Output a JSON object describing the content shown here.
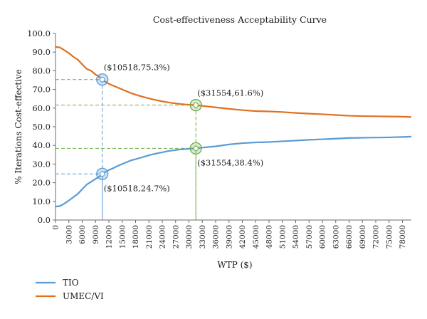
{
  "chart_data": {
    "type": "line",
    "title": "Cost-effectiveness Acceptability Curve",
    "xlabel": "WTP ($)",
    "ylabel": "% Iterations Cost-effective",
    "xlim": [
      0,
      80000
    ],
    "ylim": [
      0,
      100
    ],
    "y_ticks": [
      "0.0",
      "10.0",
      "20.0",
      "30.0",
      "40.0",
      "50.0",
      "60.0",
      "70.0",
      "80.0",
      "90.0",
      "100.0"
    ],
    "x_ticks": [
      "0",
      "3000",
      "6000",
      "9000",
      "12000",
      "15000",
      "18000",
      "21000",
      "24000",
      "27000",
      "30000",
      "33000",
      "36000",
      "39000",
      "42000",
      "45000",
      "48000",
      "51000",
      "54000",
      "57000",
      "60000",
      "63000",
      "66000",
      "69000",
      "72000",
      "75000",
      "78000"
    ],
    "grid": false,
    "legend_position": "bottom-left",
    "series": [
      {
        "name": "TIO",
        "color": "#5b9bd5",
        "x": [
          0,
          1000,
          2000,
          3000,
          4000,
          5000,
          6000,
          7000,
          8000,
          9000,
          10000,
          10518,
          11000,
          12000,
          13000,
          14000,
          15000,
          16000,
          17000,
          18000,
          19000,
          20000,
          21000,
          22000,
          23000,
          24000,
          25000,
          26000,
          27000,
          28000,
          29000,
          30000,
          31000,
          31554,
          33000,
          36000,
          39000,
          42000,
          45000,
          48000,
          51000,
          54000,
          57000,
          60000,
          63000,
          66000,
          69000,
          72000,
          75000,
          78000,
          80000
        ],
        "values": [
          7.2,
          7.5,
          8.8,
          10.5,
          12.2,
          14.0,
          16.5,
          19.0,
          20.5,
          22.0,
          23.5,
          24.7,
          25.5,
          26.8,
          27.8,
          29.0,
          30.0,
          31.0,
          32.0,
          32.6,
          33.3,
          34.0,
          34.7,
          35.3,
          35.8,
          36.3,
          36.8,
          37.2,
          37.5,
          37.8,
          38.0,
          38.2,
          38.3,
          38.4,
          38.8,
          39.5,
          40.5,
          41.2,
          41.6,
          41.8,
          42.2,
          42.6,
          43.0,
          43.3,
          43.6,
          44.0,
          44.1,
          44.2,
          44.3,
          44.5,
          44.7
        ]
      },
      {
        "name": "UMEC/VI",
        "color": "#e07020",
        "x": [
          0,
          1000,
          2000,
          3000,
          4000,
          5000,
          6000,
          7000,
          8000,
          9000,
          10000,
          10518,
          11000,
          12000,
          13000,
          14000,
          15000,
          16000,
          17000,
          18000,
          19000,
          20000,
          21000,
          22000,
          23000,
          24000,
          25000,
          26000,
          27000,
          28000,
          29000,
          30000,
          31000,
          31554,
          33000,
          36000,
          39000,
          42000,
          45000,
          48000,
          51000,
          54000,
          57000,
          60000,
          63000,
          66000,
          69000,
          72000,
          75000,
          78000,
          80000
        ],
        "values": [
          92.8,
          92.5,
          91.0,
          89.5,
          87.5,
          86.0,
          83.5,
          81.0,
          80.0,
          78.0,
          76.5,
          75.3,
          74.5,
          73.0,
          72.0,
          71.0,
          70.0,
          69.0,
          68.0,
          67.2,
          66.5,
          65.8,
          65.2,
          64.6,
          64.1,
          63.6,
          63.2,
          62.8,
          62.5,
          62.2,
          62.0,
          61.8,
          61.7,
          61.6,
          61.2,
          60.4,
          59.6,
          58.9,
          58.4,
          58.2,
          57.9,
          57.4,
          57.0,
          56.7,
          56.3,
          55.9,
          55.7,
          55.6,
          55.5,
          55.4,
          55.2
        ]
      }
    ],
    "annotations": [
      {
        "text": "($10518,75.3%)",
        "x": 10518,
        "y": 75.3,
        "color": "#5b9bd5",
        "label_side": "above"
      },
      {
        "text": "($10518,24.7%)",
        "x": 10518,
        "y": 24.7,
        "color": "#5b9bd5",
        "label_side": "below"
      },
      {
        "text": "($31554,61.6%)",
        "x": 31554,
        "y": 61.6,
        "color": "#70ad47",
        "label_side": "above"
      },
      {
        "text": "($31554,38.4%)",
        "x": 31554,
        "y": 38.4,
        "color": "#70ad47",
        "label_side": "below"
      }
    ]
  }
}
